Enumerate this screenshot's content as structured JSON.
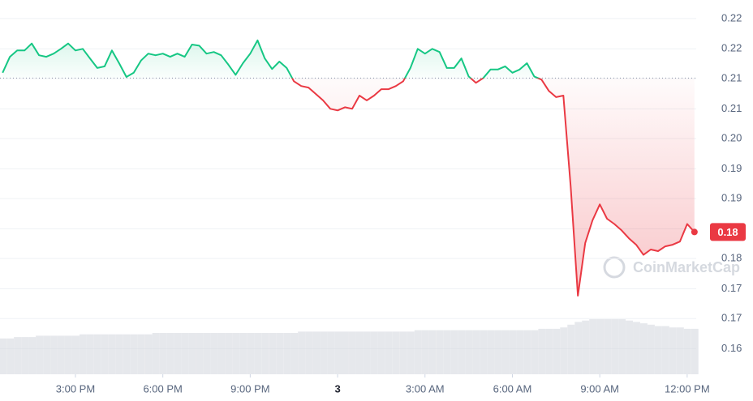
{
  "chart_data": {
    "type": "line",
    "watermark": "CoinMarketCap",
    "x": [
      12.5,
      12.75,
      13,
      13.25,
      13.5,
      13.75,
      14,
      14.25,
      14.5,
      14.75,
      15,
      15.25,
      15.5,
      15.75,
      16,
      16.25,
      16.5,
      16.75,
      17,
      17.25,
      17.5,
      17.75,
      18,
      18.25,
      18.5,
      18.75,
      19,
      19.25,
      19.5,
      19.75,
      20,
      20.25,
      20.5,
      20.75,
      21,
      21.25,
      21.5,
      21.75,
      22,
      22.25,
      22.5,
      22.75,
      23,
      23.25,
      23.5,
      23.75,
      24,
      24.25,
      24.5,
      24.75,
      25,
      25.25,
      25.5,
      25.75,
      26,
      26.25,
      26.5,
      26.75,
      27,
      27.25,
      27.5,
      27.75,
      28,
      28.25,
      28.5,
      28.75,
      29,
      29.25,
      29.5,
      29.75,
      30,
      30.25,
      30.5,
      30.75,
      31,
      31.25,
      31.5,
      31.75,
      32,
      32.25,
      32.5,
      32.75,
      33,
      33.25,
      33.5,
      33.75,
      34,
      34.25,
      34.5,
      34.75,
      35,
      35.25,
      35.5,
      35.75,
      36,
      36.25
    ],
    "series": [
      {
        "name": "Price",
        "color_up": "#16c784",
        "color_down": "#ea3943",
        "values": [
          0.2125,
          0.2155,
          0.2167,
          0.2167,
          0.218,
          0.2158,
          0.2155,
          0.2161,
          0.217,
          0.218,
          0.2167,
          0.217,
          0.2152,
          0.2134,
          0.2137,
          0.2167,
          0.2143,
          0.2117,
          0.2125,
          0.2148,
          0.2161,
          0.2158,
          0.2161,
          0.2155,
          0.2161,
          0.2155,
          0.2178,
          0.2176,
          0.2161,
          0.2164,
          0.2158,
          0.214,
          0.2121,
          0.2143,
          0.2161,
          0.2186,
          0.2152,
          0.2132,
          0.2146,
          0.2134,
          0.2109,
          0.21,
          0.2097,
          0.2085,
          0.2073,
          0.2057,
          0.2054,
          0.206,
          0.2057,
          0.2082,
          0.2073,
          0.2082,
          0.2094,
          0.2094,
          0.21,
          0.2109,
          0.2134,
          0.217,
          0.2161,
          0.217,
          0.2164,
          0.2134,
          0.2134,
          0.2152,
          0.2118,
          0.2106,
          0.2115,
          0.2131,
          0.2131,
          0.2137,
          0.2125,
          0.2131,
          0.2143,
          0.2118,
          0.2112,
          0.2091,
          0.2079,
          0.2082,
          0.1911,
          0.1705,
          0.1804,
          0.1847,
          0.1877,
          0.185,
          0.184,
          0.1828,
          0.1813,
          0.1801,
          0.1782,
          0.1792,
          0.1789,
          0.1798,
          0.1801,
          0.1807,
          0.184,
          0.1825
        ]
      },
      {
        "name": "Volume",
        "color": "#d5d9e0",
        "values": [
          26,
          26,
          27,
          27,
          27,
          28,
          28,
          28,
          28,
          28,
          28,
          29,
          29,
          29,
          29,
          29,
          29,
          29,
          29,
          29,
          29,
          30,
          30,
          30,
          30,
          30,
          30,
          30,
          30,
          30,
          30,
          30,
          30,
          30,
          30,
          30,
          30,
          30,
          30,
          30,
          30,
          31,
          31,
          31,
          31,
          31,
          31,
          31,
          31,
          31,
          31,
          31,
          31,
          31,
          31,
          31,
          31,
          32,
          32,
          32,
          32,
          32,
          32,
          32,
          32,
          32,
          32,
          32,
          32,
          32,
          32,
          32,
          32,
          32,
          33,
          33,
          33,
          34,
          36,
          38,
          39,
          40,
          40,
          40,
          40,
          40,
          39,
          38,
          37,
          36,
          35,
          35,
          34,
          34,
          33,
          33
        ]
      }
    ],
    "baseline": 0.2115,
    "current_price_label": "0.18",
    "xlim": [
      12.41,
      36.31
    ],
    "xticks": [
      {
        "value": 15,
        "label": "3:00 PM"
      },
      {
        "value": 18,
        "label": "6:00 PM"
      },
      {
        "value": 21,
        "label": "9:00 PM"
      },
      {
        "value": 24,
        "label": "3"
      },
      {
        "value": 27,
        "label": "3:00 AM"
      },
      {
        "value": 30,
        "label": "6:00 AM"
      },
      {
        "value": 33,
        "label": "9:00 AM"
      },
      {
        "value": 36,
        "label": "12:00 PM"
      }
    ],
    "ylim": [
      0.1557,
      0.2262
    ],
    "yticks": [
      {
        "value": 0.1605,
        "label": "0.16"
      },
      {
        "value": 0.1662,
        "label": "0.17"
      },
      {
        "value": 0.1718,
        "label": "0.17"
      },
      {
        "value": 0.1775,
        "label": "0.18"
      },
      {
        "value": 0.1831,
        "label": "0.18"
      },
      {
        "value": 0.1888,
        "label": "0.19"
      },
      {
        "value": 0.1944,
        "label": "0.19"
      },
      {
        "value": 0.2001,
        "label": "0.20"
      },
      {
        "value": 0.2057,
        "label": "0.21"
      },
      {
        "value": 0.2114,
        "label": "0.21"
      },
      {
        "value": 0.217,
        "label": "0.22"
      },
      {
        "value": 0.2227,
        "label": "0.22"
      }
    ],
    "grid": true
  }
}
